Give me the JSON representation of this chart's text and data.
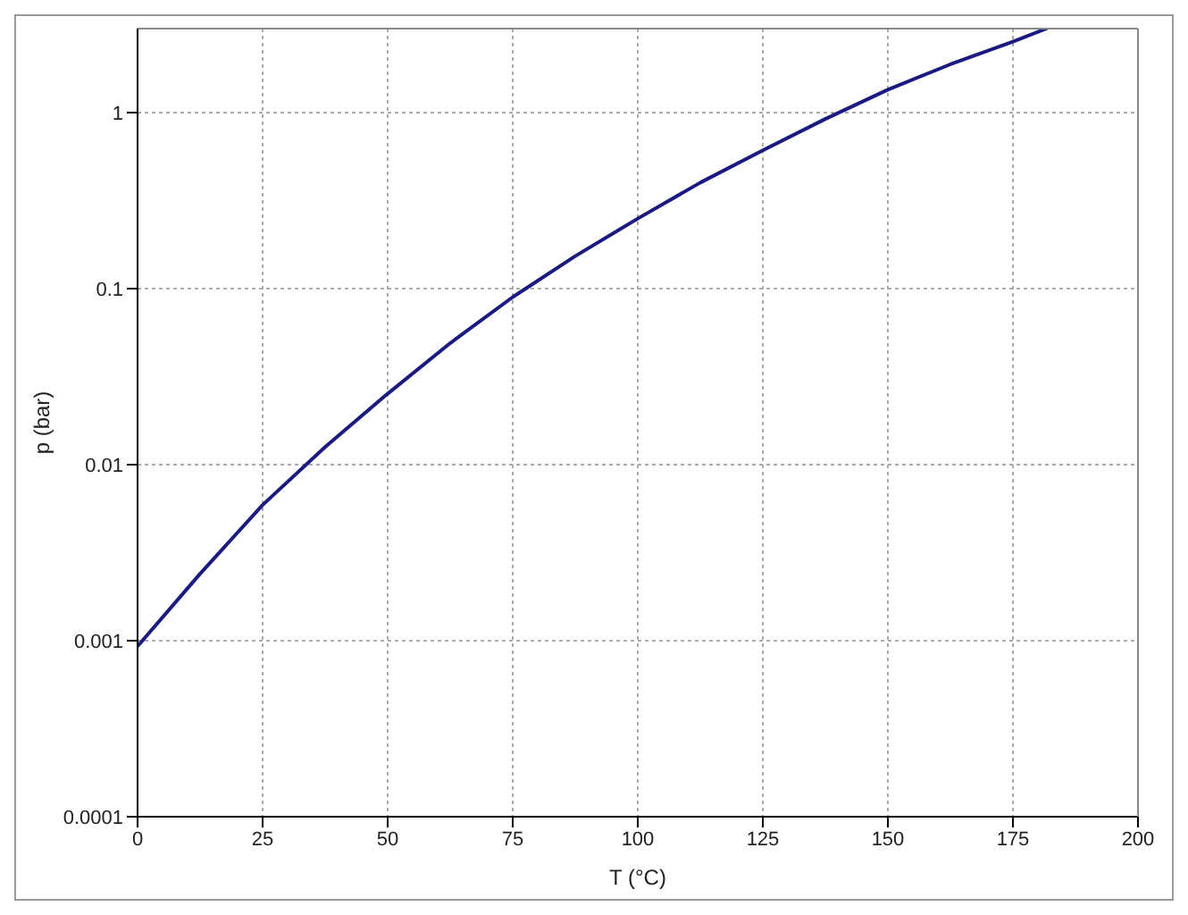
{
  "chart_data": {
    "type": "line",
    "xlabel": "T (°C)",
    "ylabel": "p (bar)",
    "x": [
      0,
      12.5,
      25,
      37.5,
      50,
      62.5,
      75,
      87.5,
      100,
      112.5,
      125,
      137.5,
      150,
      162.5,
      175,
      181.7
    ],
    "series": [
      {
        "color": "#1a1a80",
        "values": [
          0.00093,
          0.0024,
          0.0059,
          0.0126,
          0.0253,
          0.049,
          0.0895,
          0.153,
          0.25,
          0.4,
          0.61,
          0.92,
          1.35,
          1.88,
          2.53,
          3.0
        ]
      }
    ],
    "xlim": [
      0,
      200
    ],
    "xticks": [
      0,
      25,
      50,
      75,
      100,
      125,
      150,
      175,
      200
    ],
    "ylim": [
      0.0001,
      3
    ],
    "yticks": [
      0.0001,
      0.001,
      0.01,
      0.1,
      1
    ],
    "log": "y",
    "grid": true,
    "marker": "none",
    "line_style": "solid",
    "legend": false
  }
}
